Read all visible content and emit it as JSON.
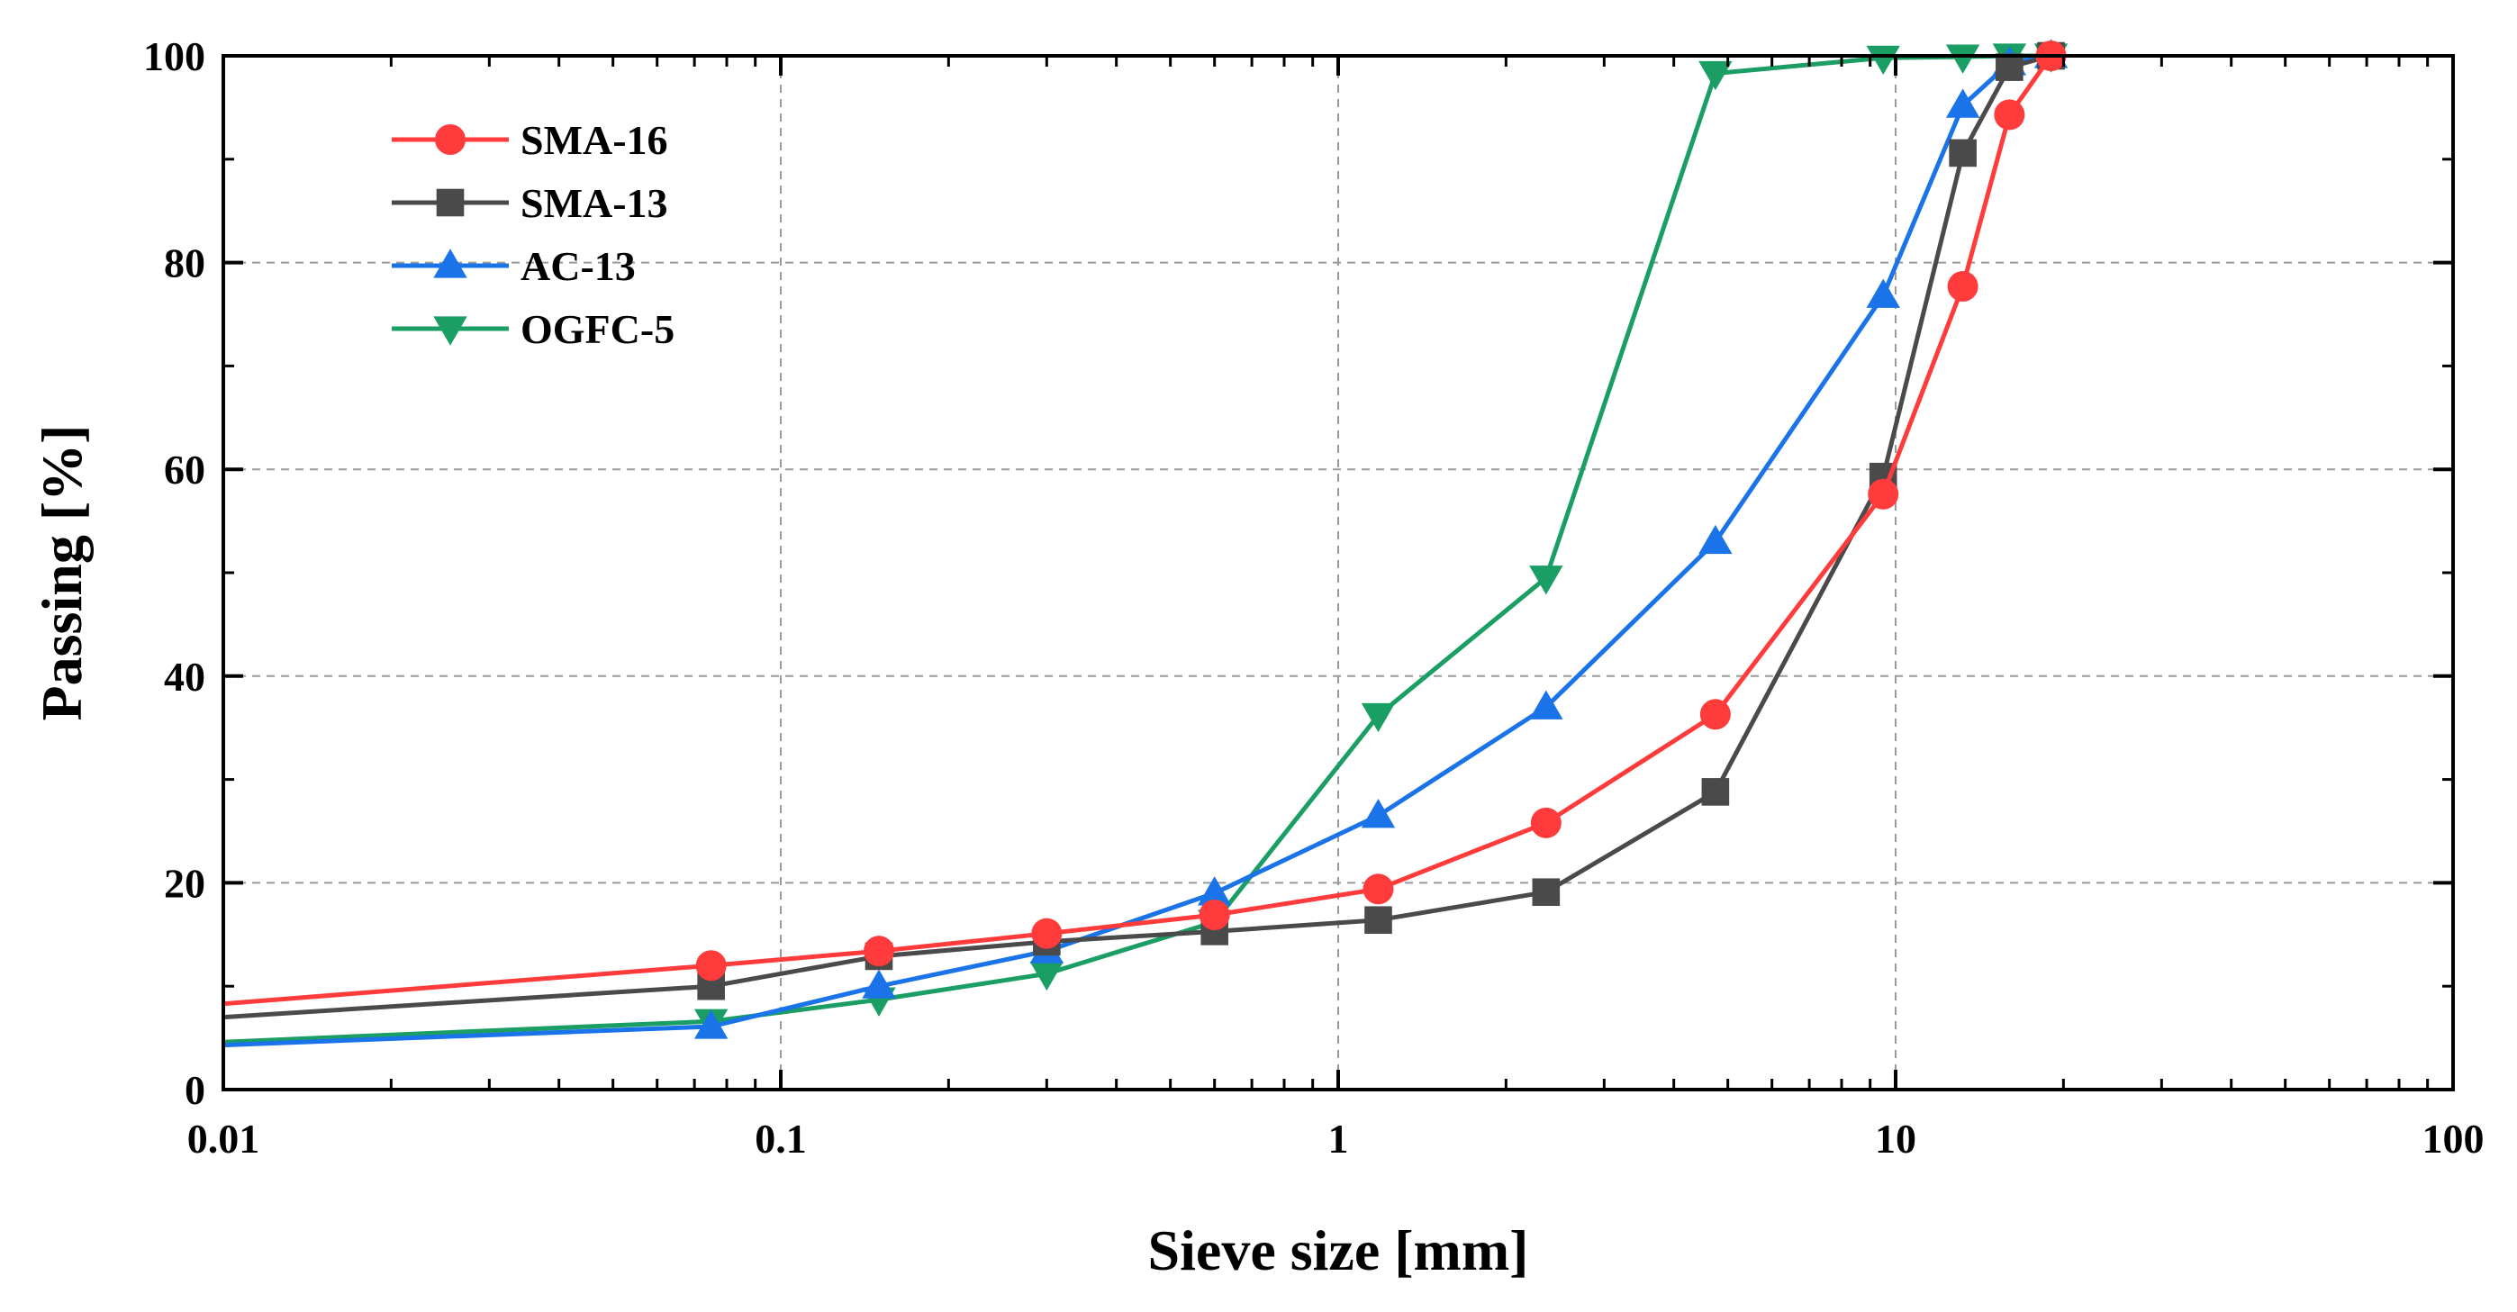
{
  "chart_data": {
    "type": "line",
    "title": "",
    "xlabel": "Sieve size [mm]",
    "ylabel": "Passing [%]",
    "xscale": "log",
    "xlim": [
      0.01,
      100
    ],
    "ylim": [
      0,
      100
    ],
    "x_ticks": [
      0.01,
      0.1,
      1,
      10,
      100
    ],
    "x_tick_labels": [
      "0.01",
      "0.1",
      "1",
      "10",
      "100"
    ],
    "y_ticks": [
      0,
      20,
      40,
      60,
      80,
      100
    ],
    "y_tick_labels": [
      "0",
      "20",
      "40",
      "60",
      "80",
      "100"
    ],
    "grid": "dashed, major ticks",
    "legend_position": "top-left",
    "series": [
      {
        "name": "SMA-16",
        "color": "#ff3b3b",
        "marker": "circle",
        "x": [
          0.01,
          0.075,
          0.15,
          0.3,
          0.6,
          1.18,
          2.36,
          4.75,
          9.5,
          13.2,
          16,
          19
        ],
        "y": [
          8.3,
          12.0,
          13.4,
          15.1,
          16.9,
          19.4,
          25.8,
          36.3,
          57.6,
          77.7,
          94.3,
          100
        ],
        "markers_from_index": 1
      },
      {
        "name": "SMA-13",
        "color": "#4a4a4a",
        "marker": "square",
        "x": [
          0.01,
          0.075,
          0.15,
          0.3,
          0.6,
          1.18,
          2.36,
          4.75,
          9.5,
          13.2,
          16,
          19
        ],
        "y": [
          7.0,
          10.0,
          12.9,
          14.3,
          15.3,
          16.4,
          19.1,
          28.8,
          59.3,
          90.6,
          98.9,
          100
        ],
        "markers_from_index": 1
      },
      {
        "name": "AC-13",
        "color": "#1a73e8",
        "marker": "triangle-up",
        "x": [
          0.01,
          0.075,
          0.15,
          0.3,
          0.6,
          1.18,
          2.36,
          4.75,
          9.5,
          13.2,
          16,
          19
        ],
        "y": [
          4.3,
          6.1,
          10.0,
          13.4,
          19.0,
          26.5,
          37.0,
          53.0,
          76.8,
          95.2,
          99.3,
          100
        ],
        "markers_from_index": 1
      },
      {
        "name": "OGFC-5",
        "color": "#1a9e63",
        "marker": "triangle-down",
        "x": [
          0.01,
          0.075,
          0.15,
          0.3,
          0.6,
          1.18,
          2.36,
          4.75,
          9.5,
          13.2,
          16,
          19
        ],
        "y": [
          4.6,
          6.6,
          8.7,
          11.2,
          16.2,
          36.2,
          49.5,
          98.3,
          99.8,
          99.9,
          100,
          100
        ],
        "markers_from_index": 1
      }
    ]
  }
}
